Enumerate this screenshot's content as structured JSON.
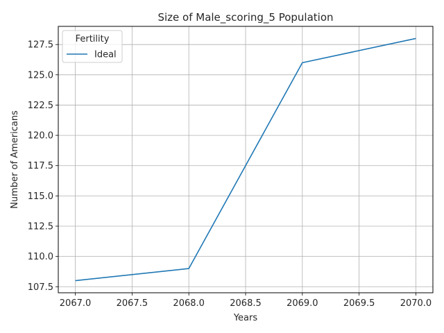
{
  "chart_data": {
    "type": "line",
    "title": "Size of Male_scoring_5 Population",
    "xlabel": "Years",
    "ylabel": "Number of Americans",
    "legend_title": "Fertility",
    "legend_position": "upper-left",
    "grid": true,
    "xlim": [
      2066.85,
      2070.15
    ],
    "ylim": [
      107.0,
      129.0
    ],
    "x_ticks": [
      2067.0,
      2067.5,
      2068.0,
      2068.5,
      2069.0,
      2069.5,
      2070.0
    ],
    "x_tick_labels": [
      "2067.0",
      "2067.5",
      "2068.0",
      "2068.5",
      "2069.0",
      "2069.5",
      "2070.0"
    ],
    "y_ticks": [
      107.5,
      110.0,
      112.5,
      115.0,
      117.5,
      120.0,
      122.5,
      125.0,
      127.5
    ],
    "y_tick_labels": [
      "107.5",
      "110.0",
      "112.5",
      "115.0",
      "117.5",
      "120.0",
      "122.5",
      "125.0",
      "127.5"
    ],
    "series": [
      {
        "name": "Ideal",
        "color": "#1f77b4",
        "x": [
          2067,
          2068,
          2069,
          2070
        ],
        "y": [
          108,
          109,
          126,
          128
        ]
      }
    ]
  }
}
